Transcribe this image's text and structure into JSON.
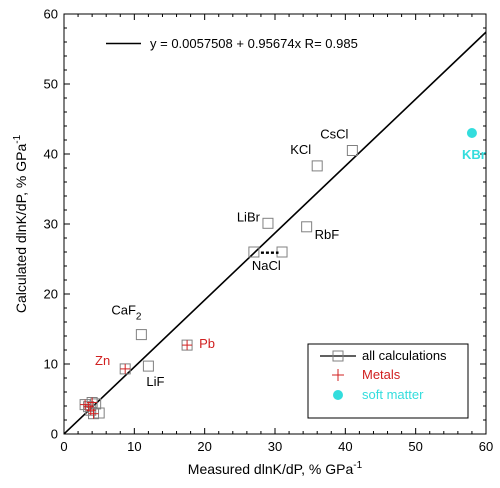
{
  "chart_data": {
    "type": "scatter",
    "xlabel": {
      "main": "Measured dlnK/dP, % GPa",
      "sup": "-1"
    },
    "ylabel": {
      "main": "Calculated dlnK/dP, % GPa",
      "sup": "-1"
    },
    "xlim": [
      0,
      60
    ],
    "ylim": [
      0,
      60
    ],
    "xticks": [
      "0",
      "10",
      "20",
      "30",
      "40",
      "50",
      "60"
    ],
    "yticks": [
      "0",
      "10",
      "20",
      "30",
      "40",
      "50",
      "60"
    ],
    "grid": false,
    "fit": {
      "label": "y = 0.0057508 + 0.95674x   R= 0.985",
      "intercept": 0.0057508,
      "slope": 0.95674,
      "R": 0.985
    },
    "colors": {
      "calc": "#808080",
      "metal": "#d02020",
      "soft": "#33dddd",
      "text": "#000000"
    },
    "series": [
      {
        "name": "all calculations",
        "marker": "square",
        "points": [
          {
            "x": 41.0,
            "y": 40.5,
            "label": "CsCl"
          },
          {
            "x": 36.0,
            "y": 38.3,
            "label": "KCl"
          },
          {
            "x": 29.0,
            "y": 30.1,
            "label": "LiBr"
          },
          {
            "x": 34.5,
            "y": 29.6,
            "label": "RbF"
          },
          {
            "x": 27.0,
            "y": 26.0,
            "label": "NaCl"
          },
          {
            "x": 31.0,
            "y": 26.0
          },
          {
            "x": 11.0,
            "y": 14.2,
            "label": "CaF2"
          },
          {
            "x": 12.0,
            "y": 9.7,
            "label": "LiF"
          },
          {
            "x": 17.5,
            "y": 12.7
          },
          {
            "x": 8.7,
            "y": 9.3
          },
          {
            "x": 3.0,
            "y": 4.2
          },
          {
            "x": 3.5,
            "y": 3.9
          },
          {
            "x": 4.0,
            "y": 4.5
          },
          {
            "x": 4.5,
            "y": 4.3
          },
          {
            "x": 3.8,
            "y": 3.4
          },
          {
            "x": 4.2,
            "y": 2.9
          },
          {
            "x": 5.0,
            "y": 3.0
          }
        ]
      },
      {
        "name": "Metals",
        "marker": "plus",
        "points": [
          {
            "x": 17.5,
            "y": 12.7,
            "label": "Pb"
          },
          {
            "x": 8.7,
            "y": 9.3,
            "label": "Zn"
          },
          {
            "x": 3.0,
            "y": 4.2
          },
          {
            "x": 3.5,
            "y": 3.9
          },
          {
            "x": 4.0,
            "y": 4.5
          },
          {
            "x": 3.8,
            "y": 3.4
          },
          {
            "x": 4.2,
            "y": 2.9
          }
        ]
      },
      {
        "name": "soft matter",
        "marker": "circle",
        "points": [
          {
            "x": 58.0,
            "y": 43.0,
            "label": "KBr"
          }
        ]
      }
    ],
    "nacl_range": {
      "x": [
        28.0,
        30.5
      ],
      "y": 25.9
    },
    "legend": {
      "position": "bottom-right"
    }
  }
}
